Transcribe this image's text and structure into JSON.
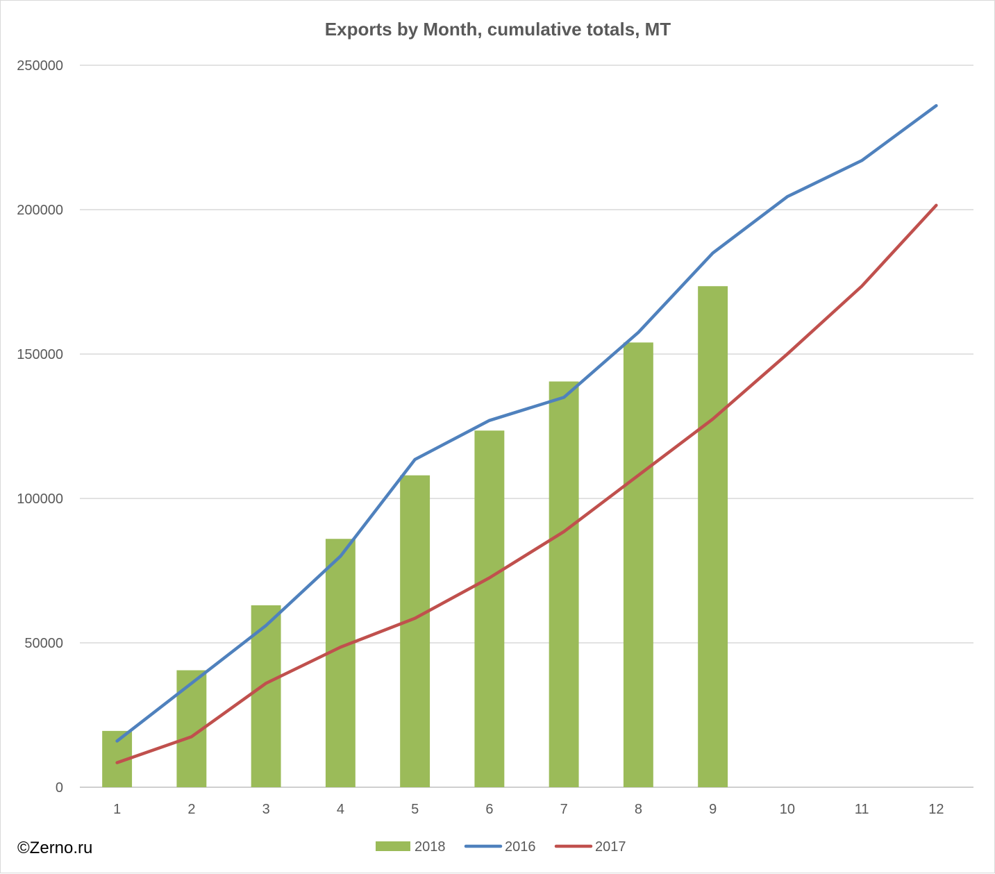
{
  "chart_data": {
    "type": "bar",
    "title": "Exports by Month, cumulative totals, MT",
    "categories": [
      "1",
      "2",
      "3",
      "4",
      "5",
      "6",
      "7",
      "8",
      "9",
      "10",
      "11",
      "12"
    ],
    "ylim": [
      0,
      250000
    ],
    "yticks": [
      "0",
      "50000",
      "100000",
      "150000",
      "200000",
      "250000"
    ],
    "grid": true,
    "legend_position": "bottom",
    "series": [
      {
        "name": "2018",
        "type": "bar",
        "color": "#9bbb59",
        "values": [
          19500,
          40500,
          63000,
          86000,
          108000,
          123500,
          140500,
          154000,
          173500,
          null,
          null,
          null
        ]
      },
      {
        "name": "2016",
        "type": "line",
        "color": "#4f81bd",
        "values": [
          16000,
          36000,
          56000,
          80000,
          113500,
          127000,
          135000,
          157500,
          185000,
          204500,
          217000,
          236000
        ]
      },
      {
        "name": "2017",
        "type": "line",
        "color": "#c0504d",
        "values": [
          8500,
          17500,
          36000,
          48500,
          58500,
          72500,
          88500,
          108000,
          127500,
          150000,
          173500,
          201500
        ]
      }
    ]
  },
  "copyright": "©Zerno.ru"
}
